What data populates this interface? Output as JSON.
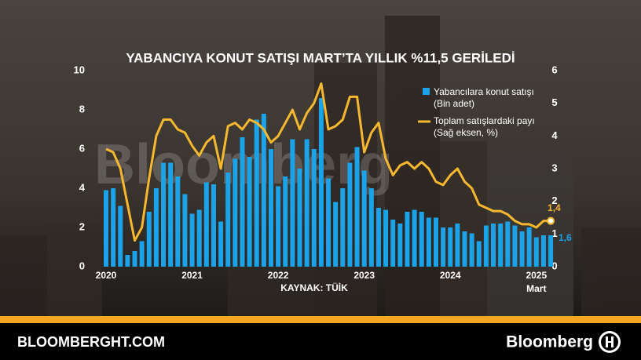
{
  "watermark": "Bloomberg",
  "footer": {
    "site": "BLOOMBERGHT.COM",
    "brand": "Bloomberg"
  },
  "chart_data": {
    "type": "bar-line",
    "title": "YABANCIYA KONUT SATIŞI MART’TA YILLIK %11,5 GERİLEDİ",
    "source": "KAYNAK: TÜİK",
    "annotation": "Mart",
    "categories": [
      "2020",
      null,
      null,
      null,
      null,
      null,
      null,
      null,
      null,
      null,
      null,
      null,
      "2021",
      null,
      null,
      null,
      null,
      null,
      null,
      null,
      null,
      null,
      null,
      null,
      "2022",
      null,
      null,
      null,
      null,
      null,
      null,
      null,
      null,
      null,
      null,
      null,
      "2023",
      null,
      null,
      null,
      null,
      null,
      null,
      null,
      null,
      null,
      null,
      null,
      "2024",
      null,
      null,
      null,
      null,
      null,
      null,
      null,
      null,
      null,
      null,
      null,
      "2025",
      null,
      null
    ],
    "series": [
      {
        "name": "Yabancılara konut satışı (Bin adet)",
        "type": "bar",
        "color": "#1aa3e8",
        "values": [
          3.9,
          4.0,
          3.1,
          0.6,
          0.8,
          1.3,
          2.8,
          4.0,
          5.3,
          5.3,
          4.6,
          3.7,
          2.7,
          2.9,
          4.3,
          4.2,
          2.3,
          4.8,
          5.5,
          6.6,
          5.6,
          7.5,
          7.8,
          6.0,
          4.1,
          4.6,
          6.5,
          5.0,
          6.5,
          6.0,
          8.6,
          4.5,
          3.3,
          4.0,
          5.3,
          6.1,
          4.9,
          4.0,
          3.0,
          2.9,
          2.4,
          2.2,
          2.8,
          2.9,
          2.8,
          2.5,
          2.5,
          2.0,
          2.0,
          2.2,
          1.8,
          1.7,
          1.3,
          2.1,
          2.2,
          2.2,
          2.3,
          2.1,
          1.8,
          2.0,
          1.5,
          1.6,
          1.6
        ],
        "value_labels": [
          null,
          null,
          null,
          null,
          null,
          null,
          null,
          null,
          null,
          null,
          null,
          null,
          null,
          null,
          null,
          null,
          null,
          null,
          null,
          null,
          null,
          null,
          null,
          null,
          null,
          null,
          null,
          null,
          null,
          null,
          null,
          null,
          null,
          null,
          null,
          null,
          null,
          null,
          null,
          null,
          null,
          null,
          null,
          null,
          null,
          null,
          null,
          null,
          null,
          null,
          null,
          null,
          null,
          null,
          null,
          null,
          null,
          null,
          null,
          null,
          null,
          null,
          "1,6"
        ]
      },
      {
        "name": "Toplam satışlardaki payı (Sağ eksen, %)",
        "type": "line",
        "axis": "y2",
        "color": "#f5b82e",
        "values": [
          3.6,
          3.5,
          3.0,
          1.9,
          0.8,
          1.2,
          2.7,
          4.0,
          4.5,
          4.5,
          4.2,
          4.1,
          3.7,
          3.4,
          3.8,
          4.0,
          3.0,
          4.3,
          4.4,
          4.2,
          4.5,
          4.4,
          4.2,
          3.8,
          4.0,
          4.4,
          4.8,
          4.2,
          4.7,
          5.0,
          5.6,
          4.2,
          4.3,
          4.5,
          5.2,
          5.2,
          3.5,
          4.1,
          4.4,
          3.3,
          2.8,
          3.1,
          3.2,
          3.0,
          3.2,
          3.0,
          2.6,
          2.5,
          2.8,
          3.0,
          2.6,
          2.4,
          1.9,
          1.8,
          1.7,
          1.7,
          1.6,
          1.4,
          1.3,
          1.3,
          1.2,
          1.4,
          1.4
        ],
        "value_labels": [
          null,
          null,
          null,
          null,
          null,
          null,
          null,
          null,
          null,
          null,
          null,
          null,
          null,
          null,
          null,
          null,
          null,
          null,
          null,
          null,
          null,
          null,
          null,
          null,
          null,
          null,
          null,
          null,
          null,
          null,
          null,
          null,
          null,
          null,
          null,
          null,
          null,
          null,
          null,
          null,
          null,
          null,
          null,
          null,
          null,
          null,
          null,
          null,
          null,
          null,
          null,
          null,
          null,
          null,
          null,
          null,
          null,
          null,
          null,
          null,
          null,
          null,
          "1,4"
        ]
      }
    ],
    "ylim": [
      0,
      10
    ],
    "yticks": [
      0,
      2,
      4,
      6,
      8,
      10
    ],
    "y2lim": [
      0,
      6
    ],
    "y2ticks": [
      0,
      1,
      2,
      3,
      4,
      5,
      6
    ],
    "grid": false
  }
}
